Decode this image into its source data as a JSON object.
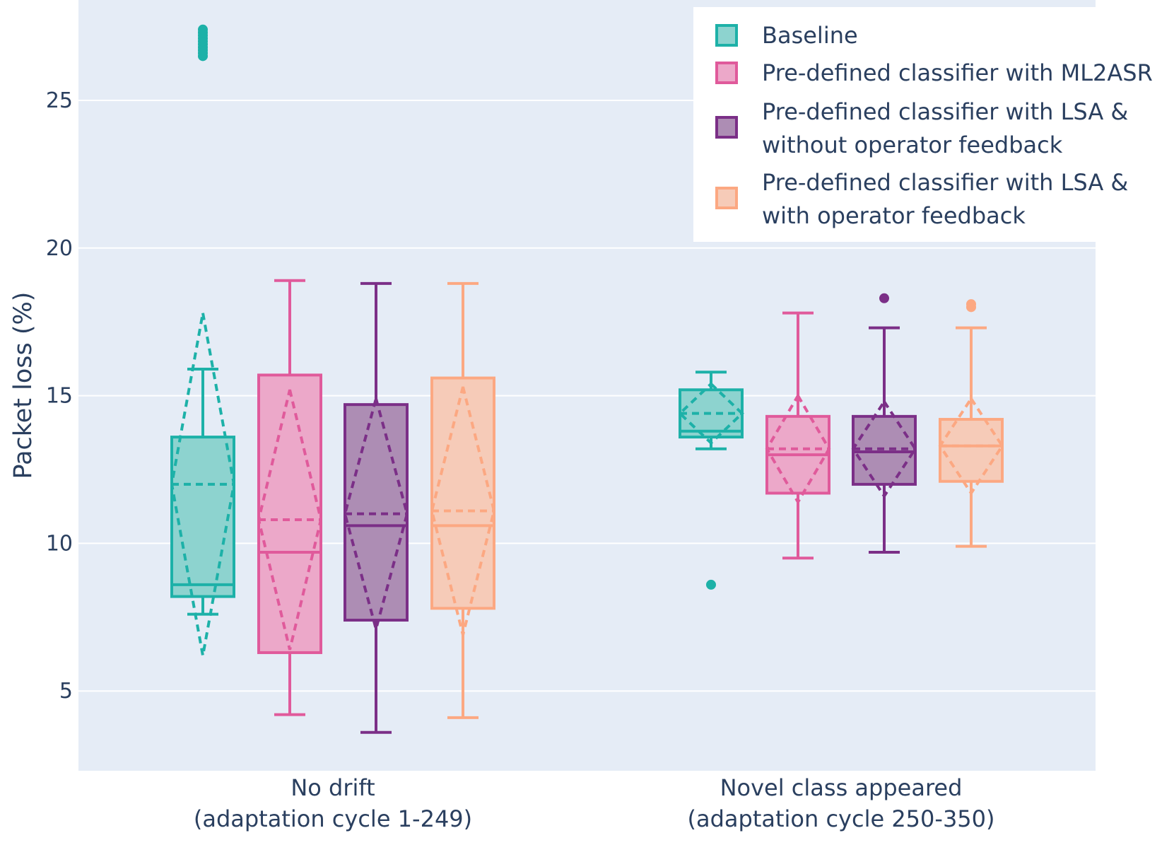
{
  "chart_data": {
    "type": "box",
    "title": "",
    "xlabel": "",
    "ylabel": "Packet loss (%)",
    "ylim": [
      2.3,
      28.4
    ],
    "yticks": [
      5,
      10,
      15,
      20,
      25
    ],
    "grid": true,
    "boxmean": "sd",
    "legend_position": "top-right",
    "categories": [
      [
        "No drift",
        "(adaptation cycle 1-249)"
      ],
      [
        "Novel class appeared",
        "(adaptation cycle 250-350)"
      ]
    ],
    "series": [
      {
        "name": "Baseline",
        "color": "#1db1a8",
        "fill": "#8dd3cf",
        "boxes": [
          {
            "lowerfence": 7.6,
            "q1": 8.2,
            "median": 8.6,
            "q3": 13.6,
            "upperfence": 15.9,
            "mean": 12.0,
            "sd": 5.8,
            "outliers": [
              26.5,
              26.6,
              26.7,
              26.8,
              26.9,
              27.0,
              27.1,
              27.2,
              27.3,
              27.4
            ]
          },
          {
            "lowerfence": 13.2,
            "q1": 13.6,
            "median": 13.8,
            "q3": 15.2,
            "upperfence": 15.8,
            "mean": 14.4,
            "sd": 1.0,
            "outliers": [
              8.6
            ]
          }
        ]
      },
      {
        "name": "Pre-defined classifier with ML2ASR",
        "color": "#e05a9b",
        "fill": "#eca8c9",
        "boxes": [
          {
            "lowerfence": 4.2,
            "q1": 6.3,
            "median": 9.7,
            "q3": 15.7,
            "upperfence": 18.9,
            "mean": 10.8,
            "sd": 4.4,
            "outliers": []
          },
          {
            "lowerfence": 9.5,
            "q1": 11.7,
            "median": 13.0,
            "q3": 14.3,
            "upperfence": 17.8,
            "mean": 13.2,
            "sd": 1.8,
            "outliers": []
          }
        ]
      },
      {
        "name": "Pre-defined classifier with LSA & without operator feedback",
        "color": "#7b2f87",
        "fill": "#ad8db4",
        "boxes": [
          {
            "lowerfence": 3.6,
            "q1": 7.4,
            "median": 10.6,
            "q3": 14.7,
            "upperfence": 18.8,
            "mean": 11.0,
            "sd": 3.9,
            "outliers": []
          },
          {
            "lowerfence": 9.7,
            "q1": 12.0,
            "median": 13.1,
            "q3": 14.3,
            "upperfence": 17.3,
            "mean": 13.2,
            "sd": 1.6,
            "outliers": [
              18.3
            ]
          }
        ]
      },
      {
        "name": "Pre-defined classifier with LSA & with operator feedback",
        "color": "#fca882",
        "fill": "#f6cbb8",
        "boxes": [
          {
            "lowerfence": 4.1,
            "q1": 7.8,
            "median": 10.6,
            "q3": 15.6,
            "upperfence": 18.8,
            "mean": 11.1,
            "sd": 4.2,
            "outliers": []
          },
          {
            "lowerfence": 9.9,
            "q1": 12.1,
            "median": 13.3,
            "q3": 14.2,
            "upperfence": 17.3,
            "mean": 13.3,
            "sd": 1.6,
            "outliers": [
              18.0,
              18.1
            ]
          }
        ]
      }
    ],
    "legend": [
      {
        "lines": [
          "Baseline"
        ]
      },
      {
        "lines": [
          "Pre-defined classifier with ML2ASR"
        ]
      },
      {
        "lines": [
          "Pre-defined classifier with LSA &",
          "without operator feedback"
        ]
      },
      {
        "lines": [
          "Pre-defined classifier with LSA &",
          "with operator feedback"
        ]
      }
    ]
  }
}
